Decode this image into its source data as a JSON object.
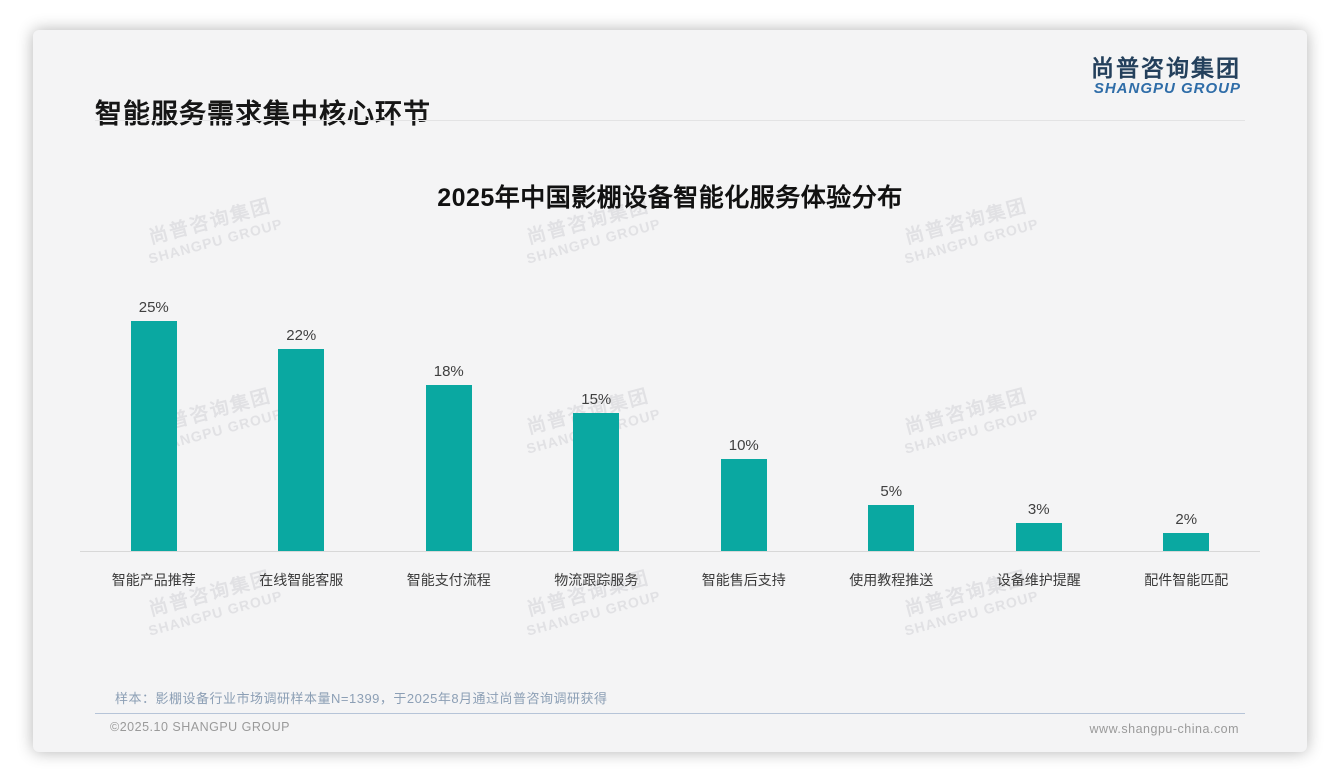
{
  "page": {
    "title": "智能服务需求集中核心环节",
    "logo": {
      "cn": "尚普咨询集团",
      "en": "SHANGPU GROUP"
    },
    "note": "样本：影棚设备行业市场调研样本量N=1399，于2025年8月通过尚普咨询调研获得",
    "footer": {
      "left": "©2025.10 SHANGPU GROUP",
      "right": "www.shangpu-china.com"
    },
    "watermark": {
      "line1": "尚普咨询集团",
      "line2": "SHANGPU GROUP"
    }
  },
  "colors": {
    "bar": "#0aa8a1",
    "logo_cn": "#24405c",
    "logo_en": "#2f6da8",
    "note_text": "#8c9fb5",
    "note_divider": "#b6c4d8",
    "slide_background": "#f4f4f5"
  },
  "chart_data": {
    "type": "bar",
    "title": "2025年中国影棚设备智能化服务体验分布",
    "categories": [
      "智能产品推荐",
      "在线智能客服",
      "智能支付流程",
      "物流跟踪服务",
      "智能售后支持",
      "使用教程推送",
      "设备维护提醒",
      "配件智能匹配"
    ],
    "values": [
      25,
      22,
      18,
      15,
      10,
      5,
      3,
      2
    ],
    "value_labels": [
      "25%",
      "22%",
      "18%",
      "15%",
      "10%",
      "5%",
      "3%",
      "2%"
    ],
    "unit": "%",
    "ylim": [
      0,
      27
    ],
    "bar_color": "#0aa8a1",
    "grid": false,
    "legend": "none"
  }
}
